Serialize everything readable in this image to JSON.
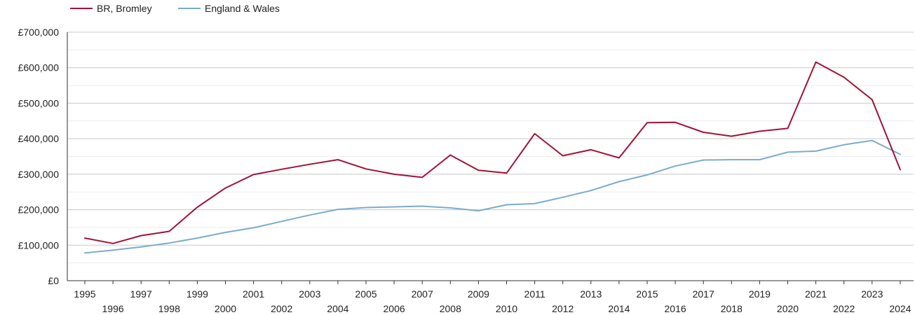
{
  "chart_data": {
    "type": "line",
    "x": [
      "1995",
      "1996",
      "1997",
      "1998",
      "1999",
      "2000",
      "2001",
      "2002",
      "2003",
      "2004",
      "2005",
      "2006",
      "2007",
      "2008",
      "2009",
      "2010",
      "2011",
      "2012",
      "2013",
      "2014",
      "2015",
      "2016",
      "2017",
      "2018",
      "2019",
      "2020",
      "2021",
      "2022",
      "2023",
      "2024"
    ],
    "y_ticks": [
      "£0",
      "£100,000",
      "£200,000",
      "£300,000",
      "£400,000",
      "£500,000",
      "£600,000",
      "£700,000"
    ],
    "ylim": [
      0,
      700000
    ],
    "grid": true,
    "legend_position": "top-left",
    "series": [
      {
        "name": "BR, Bromley",
        "color": "#a0123a",
        "values": [
          120000,
          105000,
          127000,
          139000,
          207000,
          261000,
          299000,
          314000,
          328000,
          341000,
          315000,
          300000,
          291000,
          354000,
          311000,
          303000,
          414000,
          352000,
          369000,
          346000,
          445000,
          446000,
          418000,
          407000,
          421000,
          429000,
          616000,
          573000,
          510000,
          313000
        ]
      },
      {
        "name": "England & Wales",
        "color": "#7aaccc",
        "values": [
          78000,
          86000,
          95000,
          106000,
          120000,
          136000,
          149000,
          167000,
          185000,
          201000,
          206000,
          208000,
          210000,
          205000,
          197000,
          214000,
          217000,
          235000,
          254000,
          279000,
          298000,
          323000,
          340000,
          341000,
          341000,
          362000,
          365000,
          383000,
          395000,
          356000
        ]
      }
    ]
  }
}
